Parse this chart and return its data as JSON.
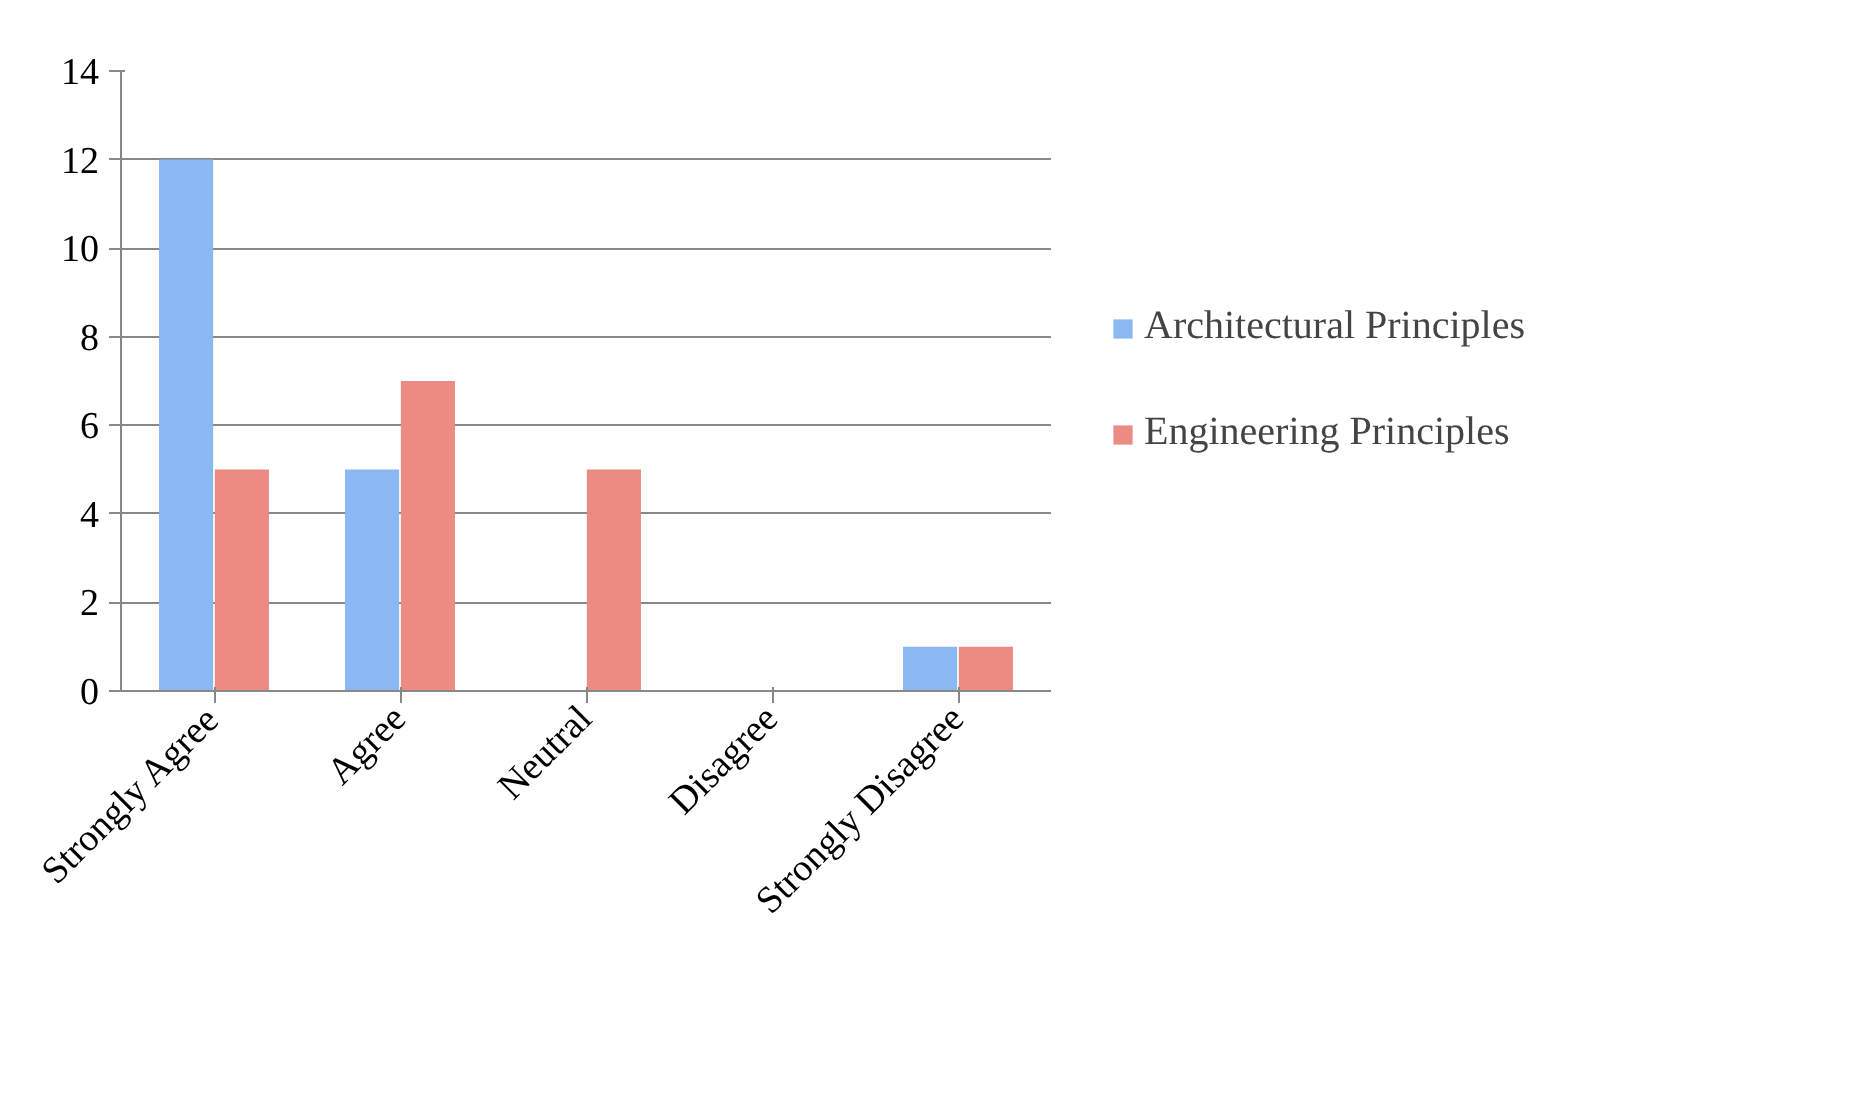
{
  "chart_data": {
    "type": "bar",
    "categories": [
      "Strongly Agree",
      "Agree",
      "Neutral",
      "Disagree",
      "Strongly Disagree"
    ],
    "series": [
      {
        "name": "Architectural Principles",
        "color": "#8ab8f2",
        "values": [
          12,
          5,
          0,
          0,
          1
        ]
      },
      {
        "name": "Engineering Principles",
        "color": "#ec8a84",
        "values": [
          5,
          7,
          5,
          0,
          1
        ]
      }
    ],
    "ylim": [
      0,
      14
    ],
    "yticks": [
      0,
      2,
      4,
      6,
      8,
      10,
      12,
      14
    ],
    "grid": "y",
    "legend": "right"
  }
}
